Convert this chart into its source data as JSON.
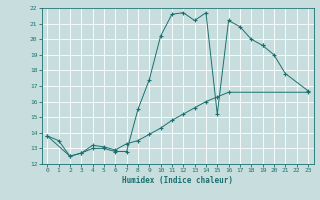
{
  "xlabel": "Humidex (Indice chaleur)",
  "xlim": [
    -0.5,
    23.5
  ],
  "ylim": [
    12,
    22
  ],
  "xticks": [
    0,
    1,
    2,
    3,
    4,
    5,
    6,
    7,
    8,
    9,
    10,
    11,
    12,
    13,
    14,
    15,
    16,
    17,
    18,
    19,
    20,
    21,
    22,
    23
  ],
  "yticks": [
    12,
    13,
    14,
    15,
    16,
    17,
    18,
    19,
    20,
    21,
    22
  ],
  "bg_color": "#c8dede",
  "line_color": "#1a7070",
  "grid_color": "#ffffff",
  "curve1_x": [
    0,
    1,
    2,
    3,
    4,
    5,
    6,
    7,
    8,
    9,
    10,
    11,
    12,
    13,
    14,
    15,
    16,
    17,
    18,
    19
  ],
  "curve1_y": [
    13.8,
    13.5,
    12.5,
    12.7,
    13.0,
    13.0,
    12.8,
    12.8,
    15.5,
    17.4,
    20.2,
    21.6,
    21.7,
    21.2,
    21.7,
    15.2,
    21.2,
    20.8,
    20.0,
    19.6
  ],
  "curve2_x": [
    0,
    2,
    3,
    4,
    5,
    6,
    7,
    8,
    9,
    10,
    11,
    12,
    13,
    14,
    15,
    16,
    23
  ],
  "curve2_y": [
    13.8,
    12.5,
    12.7,
    13.2,
    13.1,
    12.9,
    13.3,
    13.5,
    13.9,
    14.3,
    14.8,
    15.2,
    15.6,
    16.0,
    16.3,
    16.6,
    16.6
  ],
  "curve3_x": [
    19,
    20,
    21,
    23
  ],
  "curve3_y": [
    19.6,
    19.0,
    17.8,
    16.7
  ]
}
